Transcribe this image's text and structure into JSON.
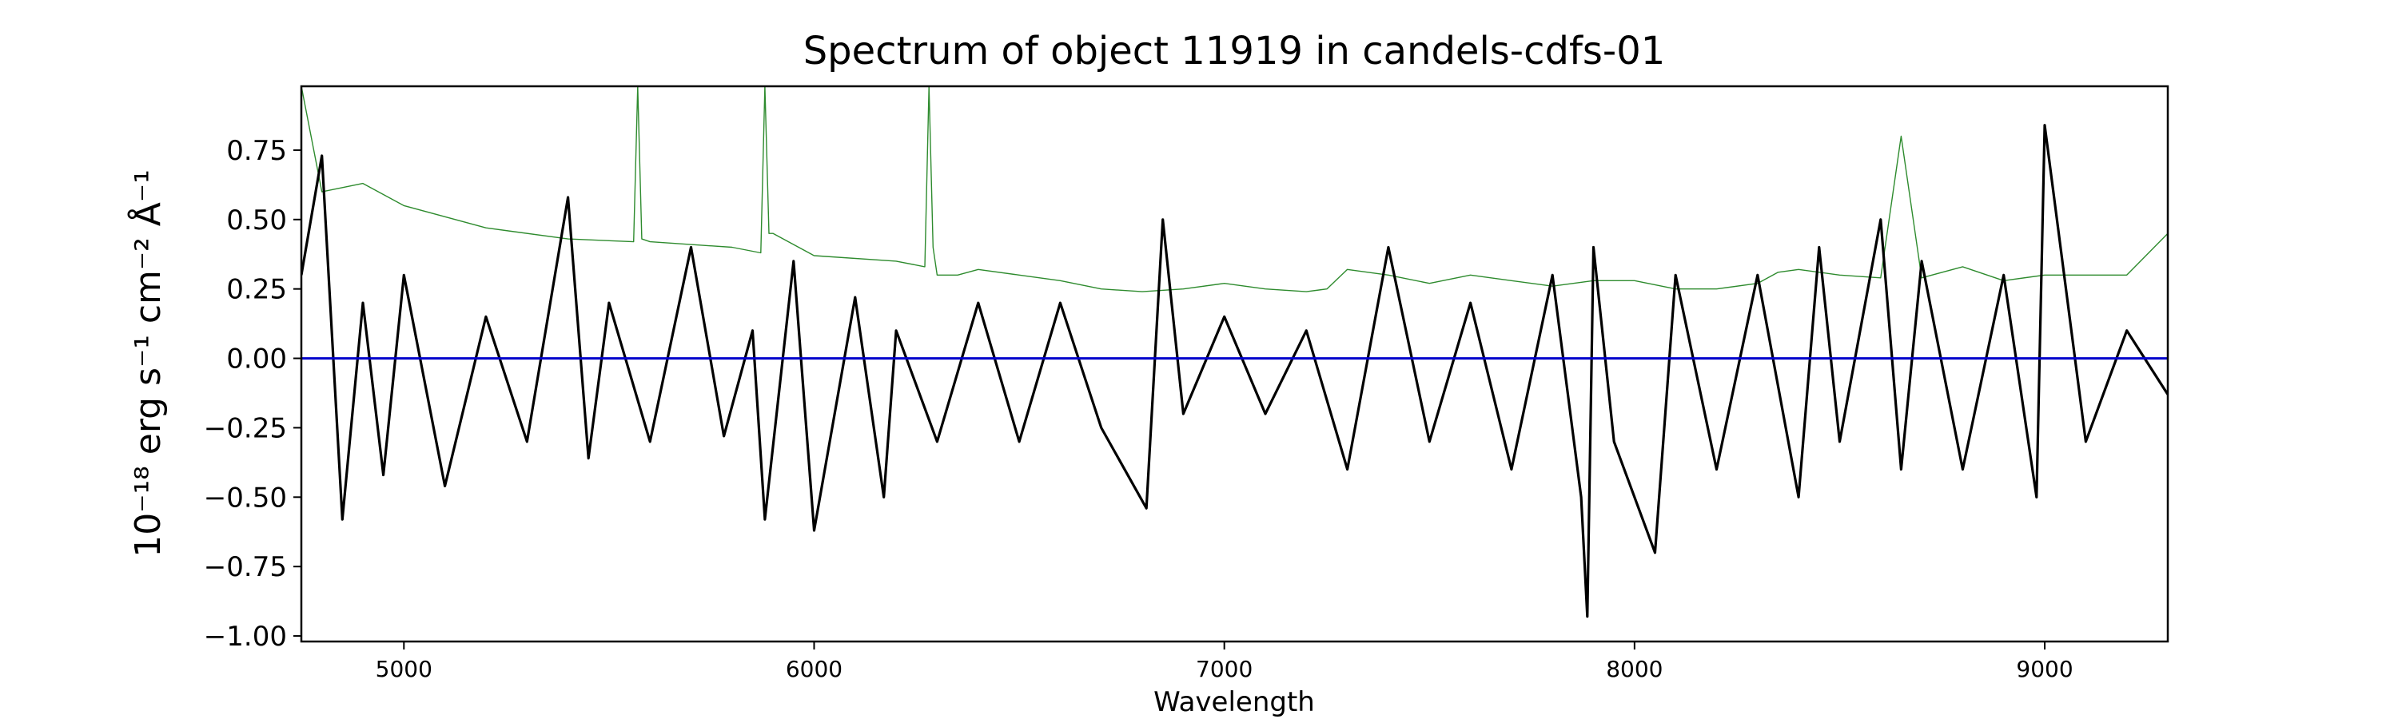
{
  "chart_data": {
    "type": "line",
    "title": "Spectrum of object 11919 in candels-cdfs-01",
    "xlabel": "Wavelength",
    "ylabel": "10⁻¹⁸ erg s⁻¹ cm⁻² Å⁻¹",
    "xlim": [
      4750,
      9300
    ],
    "ylim": [
      -1.02,
      0.98
    ],
    "xticks": [
      5000,
      6000,
      7000,
      8000,
      9000
    ],
    "yticks": [
      0.75,
      0.5,
      0.25,
      0.0,
      -0.25,
      -0.5,
      -0.75,
      -1.0
    ],
    "ytick_labels": [
      "0.75",
      "0.50",
      "0.25",
      "0.00",
      "−0.25",
      "−0.50",
      "−0.75",
      "−1.00"
    ],
    "grid": false,
    "series": [
      {
        "color": "#000000",
        "style": "thick noisy line",
        "x": [
          4750,
          4800,
          4850,
          4900,
          4950,
          5000,
          5100,
          5200,
          5300,
          5400,
          5450,
          5500,
          5600,
          5700,
          5780,
          5850,
          5880,
          5950,
          6000,
          6100,
          6170,
          6200,
          6300,
          6400,
          6500,
          6600,
          6700,
          6810,
          6850,
          6900,
          7000,
          7100,
          7200,
          7300,
          7400,
          7500,
          7600,
          7700,
          7800,
          7870,
          7885,
          7900,
          7950,
          8050,
          8100,
          8200,
          8300,
          8400,
          8450,
          8500,
          8600,
          8650,
          8700,
          8800,
          8900,
          8980,
          9000,
          9100,
          9200,
          9300
        ],
        "y": [
          0.3,
          0.73,
          -0.58,
          0.2,
          -0.42,
          0.3,
          -0.46,
          0.15,
          -0.3,
          0.58,
          -0.36,
          0.2,
          -0.3,
          0.4,
          -0.28,
          0.1,
          -0.58,
          0.35,
          -0.62,
          0.22,
          -0.5,
          0.1,
          -0.3,
          0.2,
          -0.3,
          0.2,
          -0.25,
          -0.54,
          0.5,
          -0.2,
          0.15,
          -0.2,
          0.1,
          -0.4,
          0.4,
          -0.3,
          0.2,
          -0.4,
          0.3,
          -0.5,
          -0.93,
          0.4,
          -0.3,
          -0.7,
          0.3,
          -0.4,
          0.3,
          -0.5,
          0.4,
          -0.3,
          0.5,
          -0.4,
          0.35,
          -0.4,
          0.3,
          -0.5,
          0.84,
          -0.3,
          0.1,
          -0.13
        ]
      },
      {
        "color": "#2e8b2e",
        "style": "thin line",
        "x": [
          4750,
          4800,
          4900,
          5000,
          5200,
          5400,
          5560,
          5570,
          5580,
          5600,
          5800,
          5870,
          5880,
          5890,
          5900,
          6000,
          6200,
          6270,
          6280,
          6290,
          6300,
          6350,
          6400,
          6500,
          6600,
          6700,
          6800,
          6900,
          7000,
          7100,
          7200,
          7250,
          7300,
          7400,
          7500,
          7600,
          7700,
          7800,
          7900,
          8000,
          8100,
          8200,
          8300,
          8350,
          8400,
          8500,
          8600,
          8650,
          8700,
          8800,
          8900,
          9000,
          9100,
          9200,
          9300
        ],
        "y": [
          0.98,
          0.6,
          0.63,
          0.55,
          0.47,
          0.43,
          0.42,
          0.98,
          0.43,
          0.42,
          0.4,
          0.38,
          0.98,
          0.45,
          0.45,
          0.37,
          0.35,
          0.33,
          0.98,
          0.4,
          0.3,
          0.3,
          0.32,
          0.3,
          0.28,
          0.25,
          0.24,
          0.25,
          0.27,
          0.25,
          0.24,
          0.25,
          0.32,
          0.3,
          0.27,
          0.3,
          0.28,
          0.26,
          0.28,
          0.28,
          0.25,
          0.25,
          0.27,
          0.31,
          0.32,
          0.3,
          0.29,
          0.8,
          0.29,
          0.33,
          0.28,
          0.3,
          0.3,
          0.3,
          0.45
        ]
      },
      {
        "color": "#0000cc",
        "style": "flat line",
        "x": [
          4750,
          9300
        ],
        "y": [
          0.0,
          0.0
        ]
      }
    ]
  }
}
